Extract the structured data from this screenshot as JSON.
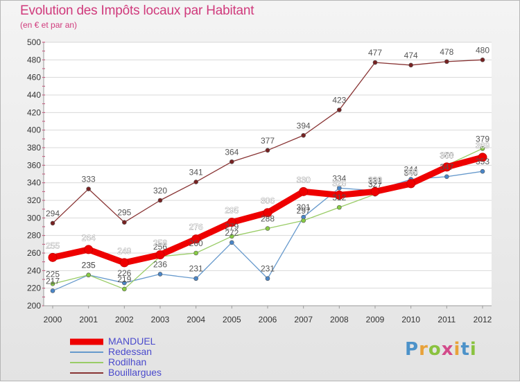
{
  "header": {
    "title": "Evolution des Impôts locaux par Habitant",
    "subtitle": "(en € et par an)"
  },
  "colors": {
    "title": "#d03a7c",
    "legend_text": "#4a4acc"
  },
  "logo": {
    "text": "Proxiti",
    "letter_colors": [
      "#4c92c9",
      "#e8a23a",
      "#8ac23f",
      "#d24a8a",
      "#e8a23a",
      "#4c92c9",
      "#8ac23f"
    ]
  },
  "chart_data": {
    "type": "line",
    "title": "Evolution des Impôts locaux par Habitant",
    "subtitle": "(en € et par an)",
    "xlabel": "",
    "ylabel": "",
    "ylim": [
      200,
      500
    ],
    "y_ticks": [
      200,
      220,
      240,
      260,
      280,
      300,
      320,
      340,
      360,
      380,
      400,
      420,
      440,
      460,
      480,
      500
    ],
    "grid": "horizontal",
    "categories": [
      "2000",
      "2001",
      "2002",
      "2003",
      "2004",
      "2005",
      "2006",
      "2007",
      "2008",
      "2009",
      "2010",
      "2011",
      "2012"
    ],
    "series": [
      {
        "name": "MANDUEL",
        "color": "#ee0000",
        "marker_color": "#ee0000",
        "label_color": "#ffffff",
        "label_stroke": "#666666",
        "emphasis": true,
        "values": [
          255,
          264,
          249,
          258,
          276,
          295,
          306,
          330,
          326,
          330,
          339,
          358,
          369
        ]
      },
      {
        "name": "Redessan",
        "color": "#6699cc",
        "marker_color": "#4a86c8",
        "label_color": "#555555",
        "emphasis": false,
        "values": [
          217,
          235,
          226,
          236,
          231,
          272,
          231,
          301,
          334,
          331,
          344,
          347,
          353
        ]
      },
      {
        "name": "Rodilhan",
        "color": "#99cc66",
        "marker_color": "#88cc44",
        "label_color": "#555555",
        "emphasis": false,
        "values": [
          225,
          235,
          219,
          256,
          260,
          279,
          288,
          297,
          312,
          327,
          340,
          360,
          379
        ]
      },
      {
        "name": "Bouillargues",
        "color": "#883333",
        "marker_color": "#772222",
        "label_color": "#555555",
        "emphasis": false,
        "values": [
          294,
          333,
          295,
          320,
          341,
          364,
          377,
          394,
          423,
          477,
          474,
          478,
          480
        ]
      }
    ],
    "legend_position": "bottom-left"
  }
}
